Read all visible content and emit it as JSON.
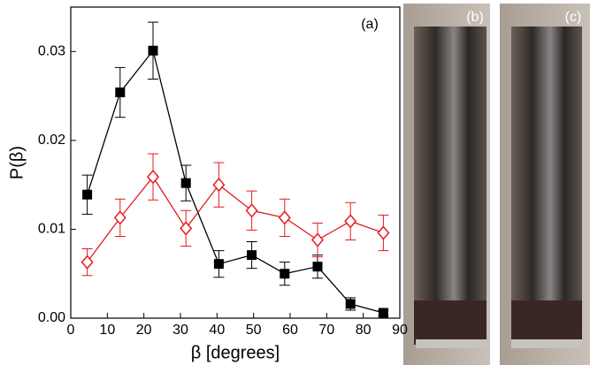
{
  "chart_data": {
    "type": "scatter",
    "xlabel": "β [degrees]",
    "ylabel": "P(β)",
    "annotation": "(a)",
    "xlim": [
      0,
      90
    ],
    "xticks": [
      0,
      10,
      20,
      30,
      40,
      50,
      60,
      70,
      80,
      90
    ],
    "ylim": [
      0,
      0.035
    ],
    "yticks": [
      {
        "value": 0,
        "label": "0.00"
      },
      {
        "value": 0.01,
        "label": "0.01"
      },
      {
        "value": 0.02,
        "label": "0.02"
      },
      {
        "value": 0.03,
        "label": "0.03"
      }
    ],
    "x": [
      4.5,
      13.5,
      22.5,
      31.5,
      40.5,
      49.5,
      58.5,
      67.5,
      76.5,
      85.5
    ],
    "series": [
      {
        "color": "#000000",
        "marker": "square-filled",
        "values": [
          0.0139,
          0.0254,
          0.0301,
          0.0152,
          0.0061,
          0.0071,
          0.005,
          0.0058,
          0.0016,
          0.0006
        ],
        "errors": [
          0.0022,
          0.0028,
          0.0032,
          0.002,
          0.0015,
          0.0015,
          0.0013,
          0.0013,
          0.0007,
          0.0003
        ]
      },
      {
        "color": "#e8191c",
        "marker": "diamond-open",
        "values": [
          0.0063,
          0.0113,
          0.0159,
          0.0101,
          0.015,
          0.0121,
          0.0113,
          0.0088,
          0.0109,
          0.0096
        ],
        "errors": [
          0.0015,
          0.0021,
          0.0026,
          0.002,
          0.0025,
          0.0022,
          0.0021,
          0.0019,
          0.0021,
          0.002
        ]
      }
    ]
  },
  "photo_labels": [
    "(b)",
    "(c)"
  ]
}
